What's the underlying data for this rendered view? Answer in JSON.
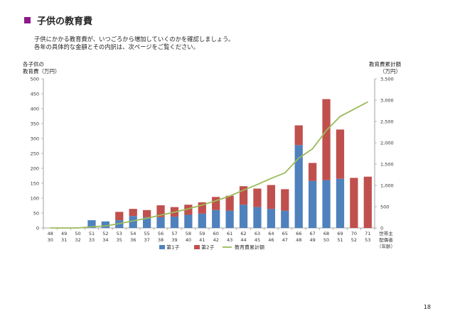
{
  "page": {
    "title": "子供の教育費",
    "title_color": "#8b1a8b",
    "description_lines": [
      "子供にかかる教育費が、いつごろから増加していくのかを確認しましょう。",
      "各年の具体的な金額とその内訳は、次ページをご覧ください。"
    ],
    "page_number": "18"
  },
  "chart_data": {
    "type": "bar",
    "stacked": true,
    "left_axis_title": [
      "各子供の",
      "教育費（万円）"
    ],
    "right_axis_title": [
      "教育費累計額",
      "（万円）"
    ],
    "x_axis_title": [
      "世帯主",
      "配偶者",
      "（年齢）"
    ],
    "categories_top": [
      "48",
      "49",
      "50",
      "51",
      "52",
      "53",
      "54",
      "55",
      "56",
      "57",
      "58",
      "59",
      "60",
      "61",
      "62",
      "63",
      "64",
      "65",
      "66",
      "67",
      "68",
      "69",
      "70",
      "71"
    ],
    "categories_bottom": [
      "30",
      "31",
      "32",
      "33",
      "34",
      "35",
      "36",
      "37",
      "38",
      "39",
      "40",
      "41",
      "42",
      "43",
      "44",
      "45",
      "46",
      "47",
      "48",
      "49",
      "50",
      "51",
      "52",
      "53"
    ],
    "ylim_left": [
      0,
      500
    ],
    "yticks_left": [
      0,
      50,
      100,
      150,
      200,
      250,
      300,
      350,
      400,
      450,
      500
    ],
    "ylim_right": [
      0,
      3500
    ],
    "yticks_right": [
      "0",
      "500",
      "1,000",
      "1,500",
      "2,000",
      "2,500",
      "3,000",
      "3,500"
    ],
    "yticks_right_values": [
      0,
      500,
      1000,
      1500,
      2000,
      2500,
      3000,
      3500
    ],
    "grid": false,
    "legend_position": "bottom",
    "series": [
      {
        "name": "第1子",
        "color": "#4f81bd",
        "values": [
          0,
          0,
          0,
          26,
          22,
          26,
          40,
          36,
          36,
          38,
          44,
          48,
          60,
          58,
          78,
          70,
          64,
          58,
          278,
          158,
          160,
          165,
          0,
          0
        ]
      },
      {
        "name": "第2子",
        "color": "#c0504d",
        "values": [
          0,
          0,
          0,
          0,
          0,
          28,
          24,
          24,
          40,
          32,
          34,
          38,
          44,
          50,
          62,
          62,
          80,
          72,
          66,
          60,
          272,
          165,
          168,
          172
        ]
      },
      {
        "name": "教育費累計額",
        "color": "#9bbb59",
        "type": "line",
        "axis": "right",
        "values": [
          0,
          0,
          0,
          26,
          48,
          102,
          166,
          226,
          302,
          372,
          450,
          536,
          640,
          748,
          888,
          1020,
          1164,
          1294,
          1638,
          1856,
          2288,
          2618,
          2786,
          2958
        ]
      }
    ]
  }
}
